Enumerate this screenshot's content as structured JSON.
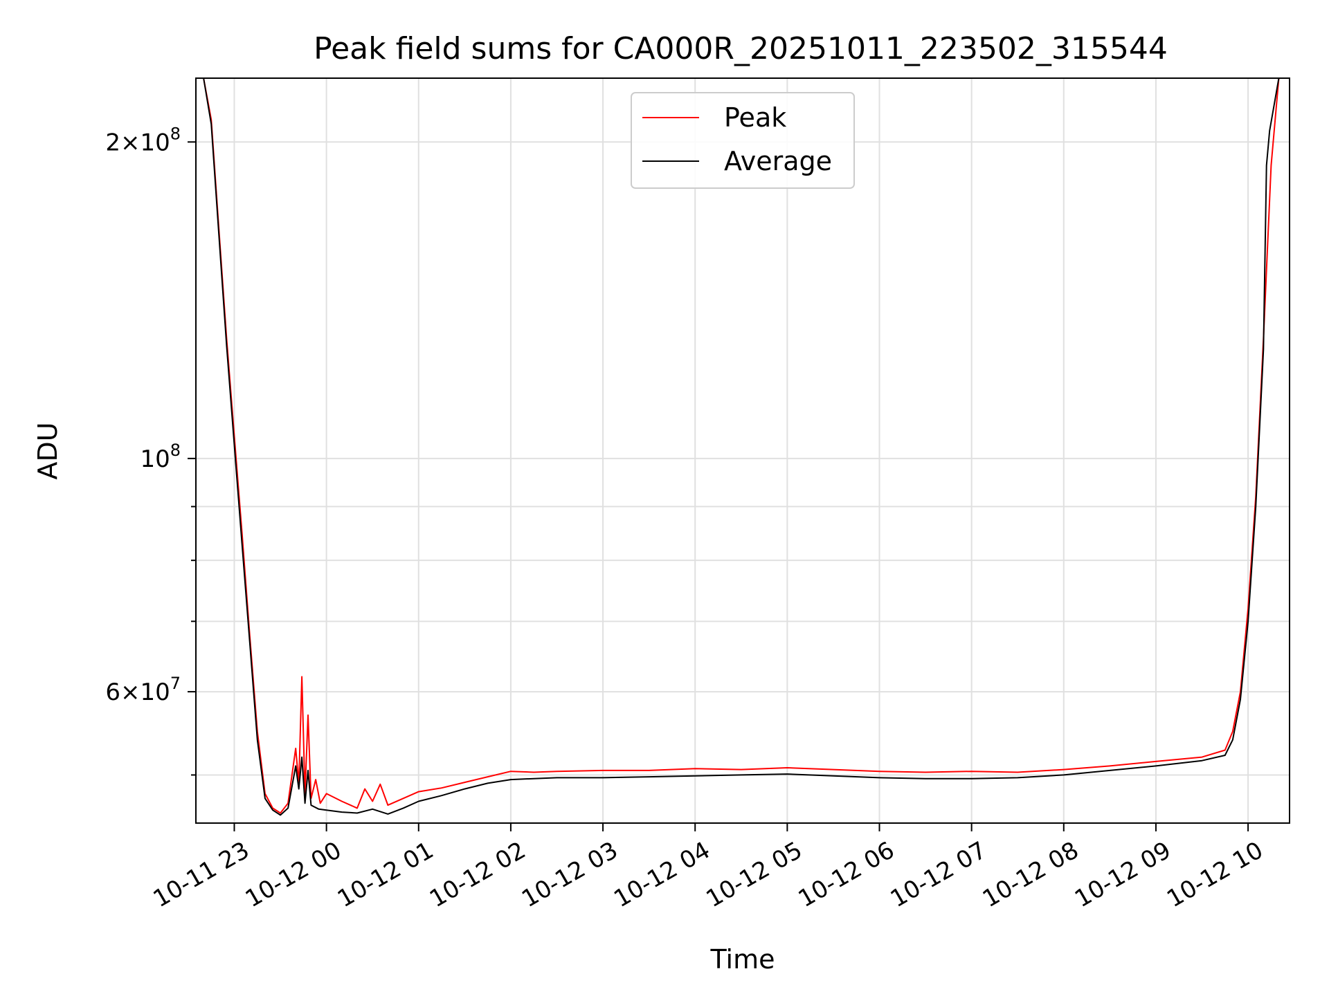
{
  "chart_data": {
    "type": "line",
    "title": "Peak field sums for CA000R_20251011_223502_315544",
    "xlabel": "Time",
    "ylabel": "ADU",
    "yscale": "log",
    "grid": true,
    "legend_position": "top-center",
    "xlim": [
      "2025-10-11 22:35",
      "2025-10-12 10:27"
    ],
    "ylim": [
      45000000,
      230000000
    ],
    "x_ticks": [
      {
        "value": "2025-10-11 23:00",
        "label": "10-11 23"
      },
      {
        "value": "2025-10-12 00:00",
        "label": "10-12 00"
      },
      {
        "value": "2025-10-12 01:00",
        "label": "10-12 01"
      },
      {
        "value": "2025-10-12 02:00",
        "label": "10-12 02"
      },
      {
        "value": "2025-10-12 03:00",
        "label": "10-12 03"
      },
      {
        "value": "2025-10-12 04:00",
        "label": "10-12 04"
      },
      {
        "value": "2025-10-12 05:00",
        "label": "10-12 05"
      },
      {
        "value": "2025-10-12 06:00",
        "label": "10-12 06"
      },
      {
        "value": "2025-10-12 07:00",
        "label": "10-12 07"
      },
      {
        "value": "2025-10-12 08:00",
        "label": "10-12 08"
      },
      {
        "value": "2025-10-12 09:00",
        "label": "10-12 09"
      },
      {
        "value": "2025-10-12 10:00",
        "label": "10-12 10"
      }
    ],
    "y_major_ticks": [
      {
        "value": 200000000,
        "mantissa": "2",
        "exponent": "8"
      },
      {
        "value": 100000000,
        "mantissa": "",
        "exponent": "8"
      },
      {
        "value": 60000000,
        "mantissa": "6",
        "exponent": "7"
      }
    ],
    "y_minor_ticks": [
      50000000,
      70000000,
      80000000,
      90000000
    ],
    "series": [
      {
        "name": "Peak",
        "color": "#ff0000",
        "x": [
          "2025-10-11 22:35",
          "2025-10-11 22:40",
          "2025-10-11 22:45",
          "2025-10-11 22:50",
          "2025-10-11 22:55",
          "2025-10-11 23:00",
          "2025-10-11 23:05",
          "2025-10-11 23:10",
          "2025-10-11 23:15",
          "2025-10-11 23:20",
          "2025-10-11 23:25",
          "2025-10-11 23:30",
          "2025-10-11 23:35",
          "2025-10-11 23:40",
          "2025-10-11 23:42",
          "2025-10-11 23:44",
          "2025-10-11 23:46",
          "2025-10-11 23:48",
          "2025-10-11 23:50",
          "2025-10-11 23:53",
          "2025-10-11 23:56",
          "2025-10-12 00:00",
          "2025-10-12 00:10",
          "2025-10-12 00:20",
          "2025-10-12 00:25",
          "2025-10-12 00:30",
          "2025-10-12 00:35",
          "2025-10-12 00:40",
          "2025-10-12 00:50",
          "2025-10-12 01:00",
          "2025-10-12 01:15",
          "2025-10-12 01:30",
          "2025-10-12 01:45",
          "2025-10-12 02:00",
          "2025-10-12 02:15",
          "2025-10-12 02:30",
          "2025-10-12 03:00",
          "2025-10-12 03:30",
          "2025-10-12 04:00",
          "2025-10-12 04:30",
          "2025-10-12 05:00",
          "2025-10-12 05:30",
          "2025-10-12 06:00",
          "2025-10-12 06:30",
          "2025-10-12 07:00",
          "2025-10-12 07:30",
          "2025-10-12 08:00",
          "2025-10-12 08:30",
          "2025-10-12 09:00",
          "2025-10-12 09:30",
          "2025-10-12 09:45",
          "2025-10-12 09:50",
          "2025-10-12 09:55",
          "2025-10-12 10:00",
          "2025-10-12 10:05",
          "2025-10-12 10:10",
          "2025-10-12 10:15",
          "2025-10-12 10:20",
          "2025-10-12 10:27"
        ],
        "values": [
          230000000,
          230000000,
          210000000,
          165000000,
          130000000,
          105000000,
          85000000,
          68000000,
          55000000,
          48000000,
          46500000,
          46000000,
          47000000,
          53000000,
          49000000,
          62000000,
          48000000,
          57000000,
          47500000,
          49500000,
          47000000,
          48000000,
          47200000,
          46500000,
          48500000,
          47200000,
          49000000,
          46800000,
          47500000,
          48200000,
          48600000,
          49200000,
          49800000,
          50400000,
          50300000,
          50400000,
          50500000,
          50500000,
          50700000,
          50600000,
          50800000,
          50600000,
          50400000,
          50300000,
          50400000,
          50300000,
          50600000,
          51000000,
          51500000,
          52000000,
          52800000,
          55000000,
          60000000,
          72000000,
          92000000,
          130000000,
          190000000,
          230000000,
          230000000
        ]
      },
      {
        "name": "Average",
        "color": "#000000",
        "x": [
          "2025-10-11 22:35",
          "2025-10-11 22:40",
          "2025-10-11 22:45",
          "2025-10-11 22:50",
          "2025-10-11 22:55",
          "2025-10-11 23:00",
          "2025-10-11 23:05",
          "2025-10-11 23:10",
          "2025-10-11 23:15",
          "2025-10-11 23:20",
          "2025-10-11 23:25",
          "2025-10-11 23:30",
          "2025-10-11 23:35",
          "2025-10-11 23:40",
          "2025-10-11 23:42",
          "2025-10-11 23:44",
          "2025-10-11 23:46",
          "2025-10-11 23:48",
          "2025-10-11 23:50",
          "2025-10-11 23:55",
          "2025-10-12 00:00",
          "2025-10-12 00:10",
          "2025-10-12 00:20",
          "2025-10-12 00:30",
          "2025-10-12 00:40",
          "2025-10-12 00:50",
          "2025-10-12 01:00",
          "2025-10-12 01:15",
          "2025-10-12 01:30",
          "2025-10-12 01:45",
          "2025-10-12 02:00",
          "2025-10-12 02:15",
          "2025-10-12 02:30",
          "2025-10-12 03:00",
          "2025-10-12 03:30",
          "2025-10-12 04:00",
          "2025-10-12 04:30",
          "2025-10-12 05:00",
          "2025-10-12 05:30",
          "2025-10-12 06:00",
          "2025-10-12 06:30",
          "2025-10-12 07:00",
          "2025-10-12 07:30",
          "2025-10-12 08:00",
          "2025-10-12 08:30",
          "2025-10-12 09:00",
          "2025-10-12 09:30",
          "2025-10-12 09:45",
          "2025-10-12 09:50",
          "2025-10-12 09:55",
          "2025-10-12 10:00",
          "2025-10-12 10:05",
          "2025-10-12 10:10",
          "2025-10-12 10:12",
          "2025-10-12 10:14",
          "2025-10-12 10:20",
          "2025-10-12 10:27"
        ],
        "values": [
          230000000,
          230000000,
          208000000,
          163000000,
          128000000,
          103000000,
          83000000,
          67000000,
          54000000,
          47500000,
          46300000,
          45800000,
          46500000,
          51000000,
          48500000,
          52000000,
          47000000,
          50500000,
          46800000,
          46400000,
          46300000,
          46100000,
          46000000,
          46400000,
          45900000,
          46500000,
          47200000,
          47800000,
          48500000,
          49100000,
          49500000,
          49600000,
          49700000,
          49700000,
          49800000,
          49900000,
          50000000,
          50100000,
          49900000,
          49700000,
          49600000,
          49600000,
          49700000,
          50000000,
          50500000,
          51000000,
          51600000,
          52200000,
          54000000,
          59000000,
          70000000,
          90000000,
          127000000,
          190000000,
          205000000,
          230000000,
          230000000
        ]
      }
    ]
  }
}
